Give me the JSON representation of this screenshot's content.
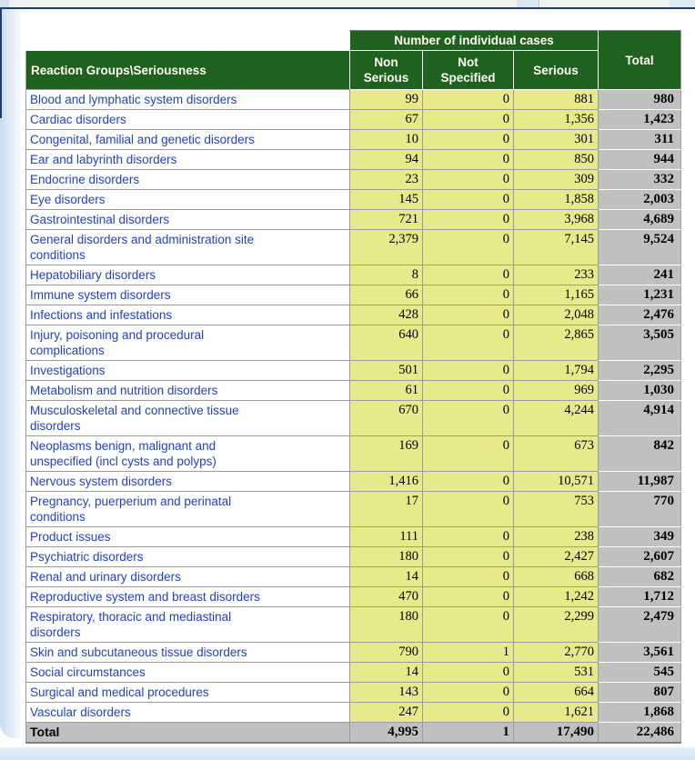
{
  "colors": {
    "header_green": "#1f611f",
    "header_text": "#fffff2",
    "count_cell_yellow": "#e7e98b",
    "total_cell_gray": "#c0c0c0",
    "label_link_blue": "#2141cb",
    "top_rule_navy": "#1d3e6e",
    "panel_border_blue": "#c9dcf1"
  },
  "table": {
    "header": {
      "group_title": "Number of individual cases",
      "corner_label": "Reaction Groups\\Seriousness",
      "columns": [
        "Non\nSerious",
        "Not\nSpecified",
        "Serious"
      ],
      "total_label": "Total"
    },
    "rows": [
      {
        "label": "Blood and lymphatic system disorders",
        "non_serious": "99",
        "not_specified": "0",
        "serious": "881",
        "total": "980"
      },
      {
        "label": "Cardiac disorders",
        "non_serious": "67",
        "not_specified": "0",
        "serious": "1,356",
        "total": "1,423"
      },
      {
        "label": "Congenital, familial and genetic disorders",
        "non_serious": "10",
        "not_specified": "0",
        "serious": "301",
        "total": "311"
      },
      {
        "label": "Ear and labyrinth disorders",
        "non_serious": "94",
        "not_specified": "0",
        "serious": "850",
        "total": "944"
      },
      {
        "label": "Endocrine disorders",
        "non_serious": "23",
        "not_specified": "0",
        "serious": "309",
        "total": "332"
      },
      {
        "label": "Eye disorders",
        "non_serious": "145",
        "not_specified": "0",
        "serious": "1,858",
        "total": "2,003"
      },
      {
        "label": "Gastrointestinal disorders",
        "non_serious": "721",
        "not_specified": "0",
        "serious": "3,968",
        "total": "4,689"
      },
      {
        "label": "General disorders and administration site\nconditions",
        "non_serious": "2,379",
        "not_specified": "0",
        "serious": "7,145",
        "total": "9,524"
      },
      {
        "label": "Hepatobiliary disorders",
        "non_serious": "8",
        "not_specified": "0",
        "serious": "233",
        "total": "241"
      },
      {
        "label": "Immune system disorders",
        "non_serious": "66",
        "not_specified": "0",
        "serious": "1,165",
        "total": "1,231"
      },
      {
        "label": "Infections and infestations",
        "non_serious": "428",
        "not_specified": "0",
        "serious": "2,048",
        "total": "2,476"
      },
      {
        "label": "Injury, poisoning and procedural\ncomplications",
        "non_serious": "640",
        "not_specified": "0",
        "serious": "2,865",
        "total": "3,505"
      },
      {
        "label": "Investigations",
        "non_serious": "501",
        "not_specified": "0",
        "serious": "1,794",
        "total": "2,295"
      },
      {
        "label": "Metabolism and nutrition disorders",
        "non_serious": "61",
        "not_specified": "0",
        "serious": "969",
        "total": "1,030"
      },
      {
        "label": "Musculoskeletal and connective tissue\ndisorders",
        "non_serious": "670",
        "not_specified": "0",
        "serious": "4,244",
        "total": "4,914"
      },
      {
        "label": "Neoplasms benign, malignant and\nunspecified (incl cysts and polyps)",
        "non_serious": "169",
        "not_specified": "0",
        "serious": "673",
        "total": "842"
      },
      {
        "label": "Nervous system disorders",
        "non_serious": "1,416",
        "not_specified": "0",
        "serious": "10,571",
        "total": "11,987"
      },
      {
        "label": "Pregnancy, puerperium and perinatal\nconditions",
        "non_serious": "17",
        "not_specified": "0",
        "serious": "753",
        "total": "770"
      },
      {
        "label": "Product issues",
        "non_serious": "111",
        "not_specified": "0",
        "serious": "238",
        "total": "349"
      },
      {
        "label": "Psychiatric disorders",
        "non_serious": "180",
        "not_specified": "0",
        "serious": "2,427",
        "total": "2,607"
      },
      {
        "label": "Renal and urinary disorders",
        "non_serious": "14",
        "not_specified": "0",
        "serious": "668",
        "total": "682"
      },
      {
        "label": "Reproductive system and breast disorders",
        "non_serious": "470",
        "not_specified": "0",
        "serious": "1,242",
        "total": "1,712"
      },
      {
        "label": "Respiratory, thoracic and mediastinal\ndisorders",
        "non_serious": "180",
        "not_specified": "0",
        "serious": "2,299",
        "total": "2,479"
      },
      {
        "label": "Skin and subcutaneous tissue disorders",
        "non_serious": "790",
        "not_specified": "1",
        "serious": "2,770",
        "total": "3,561"
      },
      {
        "label": "Social circumstances",
        "non_serious": "14",
        "not_specified": "0",
        "serious": "531",
        "total": "545"
      },
      {
        "label": "Surgical and medical procedures",
        "non_serious": "143",
        "not_specified": "0",
        "serious": "664",
        "total": "807"
      },
      {
        "label": "Vascular disorders",
        "non_serious": "247",
        "not_specified": "0",
        "serious": "1,621",
        "total": "1,868"
      }
    ],
    "total_row": {
      "label": "Total",
      "non_serious": "4,995",
      "not_specified": "1",
      "serious": "17,490",
      "total": "22,486"
    }
  }
}
